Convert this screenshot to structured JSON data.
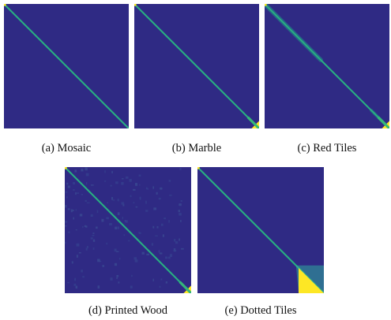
{
  "figure": {
    "colormap": {
      "base": "#2f2a84",
      "mid": "#1f9a8a",
      "high": "#35b779",
      "peak": "#fde725"
    },
    "panels": [
      {
        "id": "a",
        "caption": "(a) Mosaic",
        "diagonal": "thin-uniform",
        "corner_patch": "none",
        "noise": "none"
      },
      {
        "id": "b",
        "caption": "(b) Marble",
        "diagonal": "thin-uniform",
        "corner_patch": "small",
        "noise": "none"
      },
      {
        "id": "c",
        "caption": "(c) Red Tiles",
        "diagonal": "blurred-top",
        "corner_patch": "small",
        "noise": "none"
      },
      {
        "id": "d",
        "caption": "(d) Printed Wood",
        "diagonal": "thin-uniform",
        "corner_patch": "small",
        "noise": "speckled"
      },
      {
        "id": "e",
        "caption": "(e) Dotted Tiles",
        "diagonal": "thin-uniform",
        "corner_patch": "large",
        "noise": "none"
      }
    ]
  }
}
